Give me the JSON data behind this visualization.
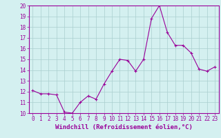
{
  "x": [
    0,
    1,
    2,
    3,
    4,
    5,
    6,
    7,
    8,
    9,
    10,
    11,
    12,
    13,
    14,
    15,
    16,
    17,
    18,
    19,
    20,
    21,
    22,
    23
  ],
  "y": [
    12.1,
    11.8,
    11.8,
    11.7,
    10.1,
    10.0,
    11.0,
    11.6,
    11.3,
    12.7,
    13.9,
    15.0,
    14.9,
    13.9,
    15.0,
    18.8,
    20.0,
    17.5,
    16.3,
    16.3,
    15.6,
    14.1,
    13.9,
    14.3
  ],
  "line_color": "#990099",
  "marker": "+",
  "marker_size": 3,
  "bg_color": "#d4f0f0",
  "grid_color": "#aacece",
  "xlabel": "Windchill (Refroidissement éolien,°C)",
  "ylim": [
    10,
    20
  ],
  "xlim": [
    -0.5,
    23.5
  ],
  "yticks": [
    10,
    11,
    12,
    13,
    14,
    15,
    16,
    17,
    18,
    19,
    20
  ],
  "xticks": [
    0,
    1,
    2,
    3,
    4,
    5,
    6,
    7,
    8,
    9,
    10,
    11,
    12,
    13,
    14,
    15,
    16,
    17,
    18,
    19,
    20,
    21,
    22,
    23
  ],
  "tick_label_fontsize": 5.5,
  "xlabel_fontsize": 6.5,
  "xlabel_color": "#990099",
  "tick_color": "#990099",
  "spine_color": "#990099",
  "line_width": 0.8,
  "marker_edge_width": 0.8
}
